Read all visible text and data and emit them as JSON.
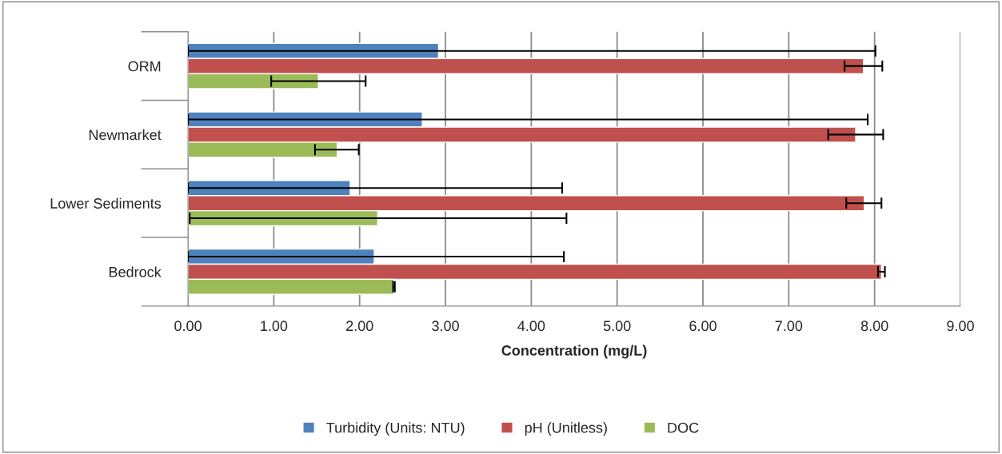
{
  "chart_data": {
    "type": "bar",
    "orientation": "horizontal",
    "categories": [
      "ORM",
      "Newmarket",
      "Lower Sediments",
      "Bedrock"
    ],
    "series": [
      {
        "name": "Turbidity (Units: NTU)",
        "color": "#4f81bd",
        "values": [
          2.92,
          2.73,
          1.89,
          2.17
        ],
        "errors": [
          [
            0,
            8.01
          ],
          [
            0,
            7.92
          ],
          [
            0,
            4.36
          ],
          [
            0,
            4.38
          ]
        ]
      },
      {
        "name": "pH (Unitless)",
        "color": "#c0504d",
        "values": [
          7.87,
          7.78,
          7.88,
          8.08
        ],
        "errors": [
          [
            7.65,
            8.09
          ],
          [
            7.46,
            8.1
          ],
          [
            7.67,
            8.08
          ],
          [
            8.04,
            8.12
          ]
        ]
      },
      {
        "name": "DOC",
        "color": "#9bbb59",
        "values": [
          1.52,
          1.74,
          2.21,
          2.4
        ],
        "errors": [
          [
            0.97,
            2.07
          ],
          [
            1.48,
            1.99
          ],
          [
            0.02,
            4.41
          ],
          [
            2.39,
            2.41
          ]
        ]
      }
    ],
    "xlabel": "Concentration (mg/L)",
    "xlim": [
      0,
      9
    ],
    "xticks": [
      {
        "value": 0,
        "label": "0.00"
      },
      {
        "value": 1,
        "label": "1.00"
      },
      {
        "value": 2,
        "label": "2.00"
      },
      {
        "value": 3,
        "label": "3.00"
      },
      {
        "value": 4,
        "label": "4.00"
      },
      {
        "value": 5,
        "label": "5.00"
      },
      {
        "value": 6,
        "label": "6.00"
      },
      {
        "value": 7,
        "label": "7.00"
      },
      {
        "value": 8,
        "label": "8.00"
      },
      {
        "value": 9,
        "label": "9.00"
      }
    ],
    "grid": "x",
    "legend": "bottom"
  }
}
